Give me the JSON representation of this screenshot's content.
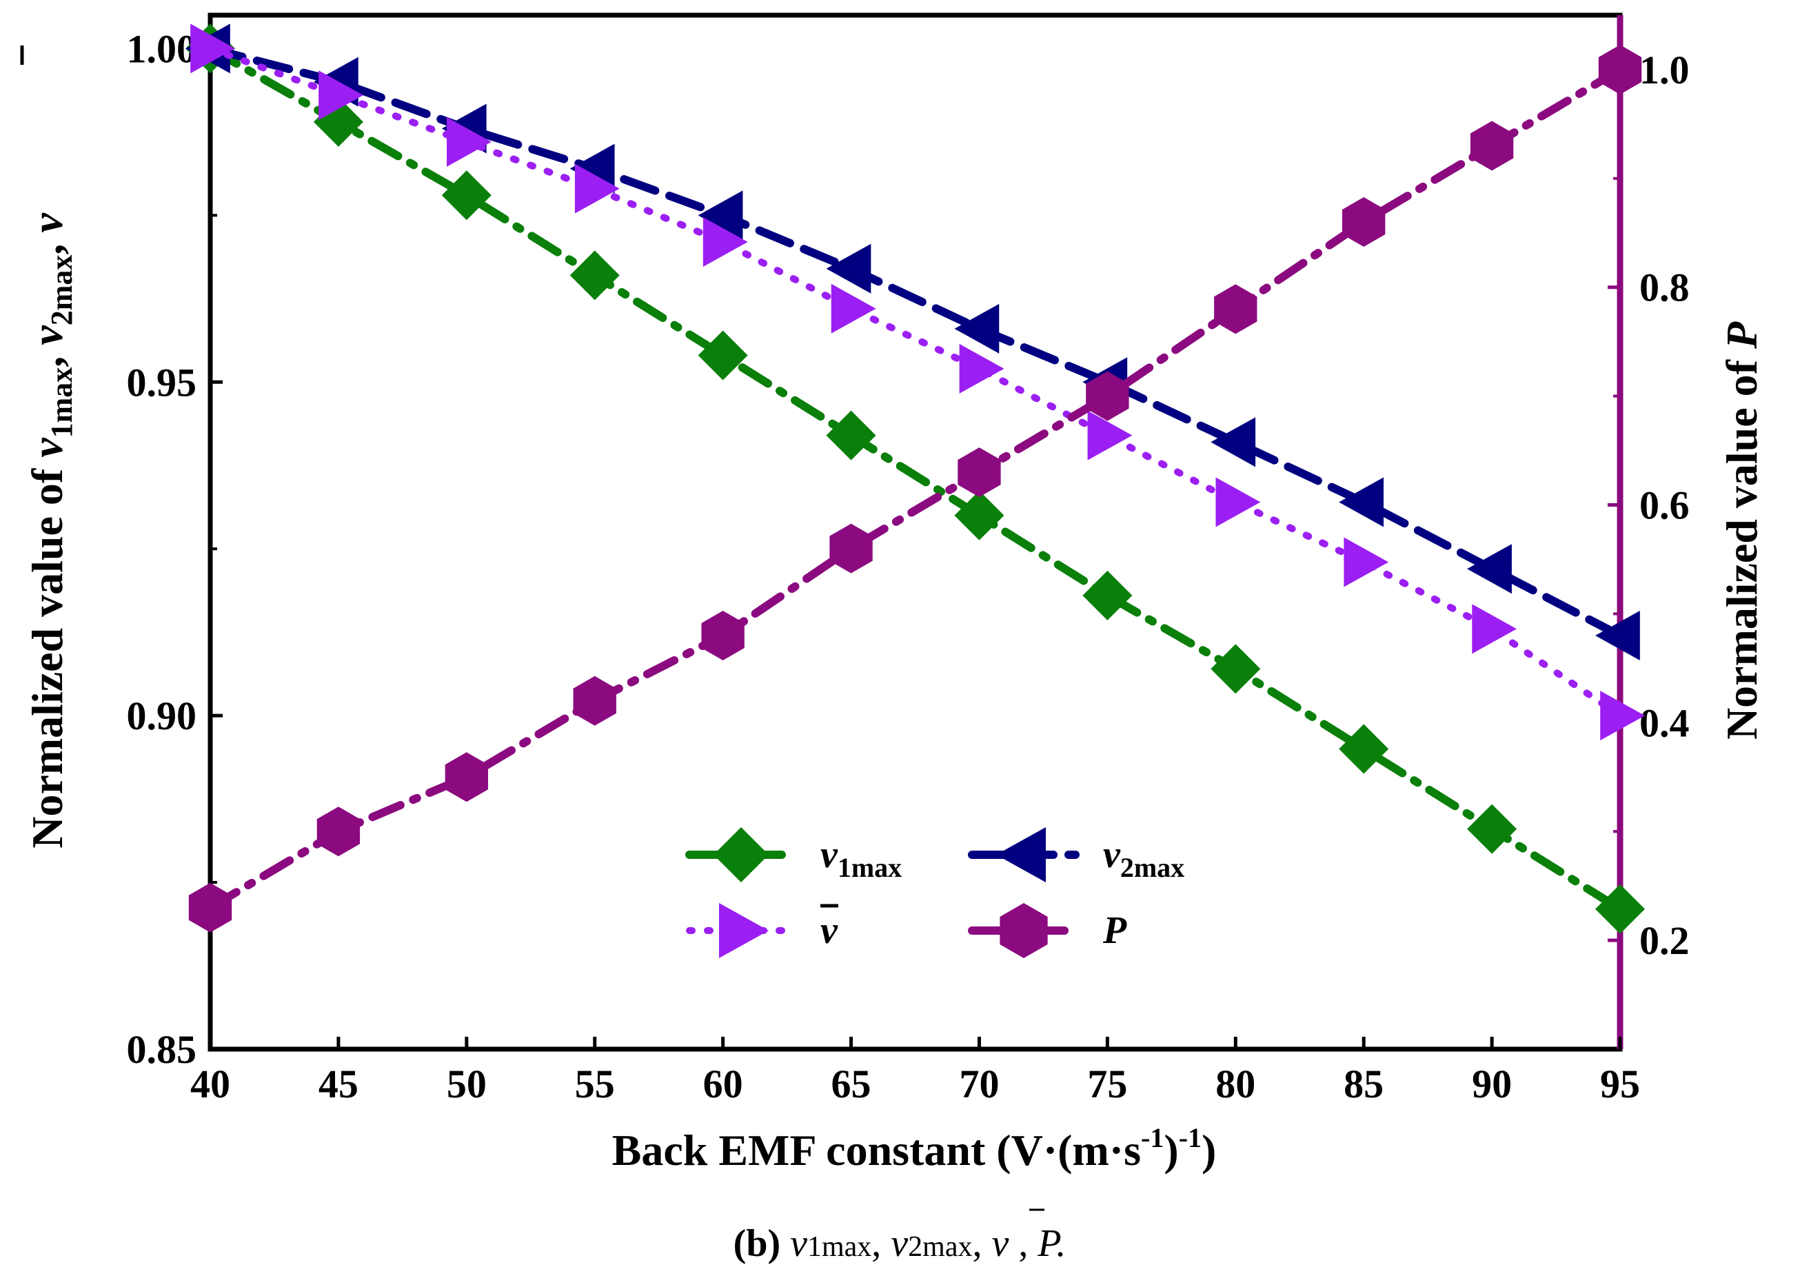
{
  "chart_data": {
    "type": "line",
    "xlabel": "Back EMF constant (V·(m·s⁻¹)⁻¹)",
    "ylabel": "Normalized value of v₁max, v₂max, v̄",
    "y2label": "Normalized value of P",
    "caption": {
      "prefix": "(b)",
      "text": " v1max, v2max, v̄ , P."
    },
    "x": [
      40,
      45,
      50,
      55,
      60,
      65,
      70,
      75,
      80,
      85,
      90,
      95
    ],
    "xlim": [
      40,
      95
    ],
    "ylim": [
      0.85,
      1.0
    ],
    "y2lim": [
      0.1,
      1.05
    ],
    "xticks": [
      "40",
      "45",
      "50",
      "55",
      "60",
      "65",
      "70",
      "75",
      "80",
      "85",
      "90",
      "95"
    ],
    "yticks": [
      "0.85",
      "0.90",
      "0.95",
      "1.00"
    ],
    "y2ticks": [
      "0.2",
      "0.4",
      "0.6",
      "0.8",
      "1.0"
    ],
    "legend_position": "lower-center",
    "series": [
      {
        "name": "v1max",
        "label_main": "v",
        "label_sub": "1max",
        "axis": "left",
        "color": "#0a7f0a",
        "marker": "diamond",
        "line": "dash-dot",
        "values": [
          1.0,
          0.989,
          0.978,
          0.966,
          0.954,
          0.942,
          0.93,
          0.918,
          0.907,
          0.895,
          0.883,
          0.871
        ]
      },
      {
        "name": "v2max",
        "label_main": "v",
        "label_sub": "2max",
        "axis": "left",
        "color": "#000080",
        "marker": "triangle-left",
        "line": "dash",
        "values": [
          1.0,
          0.995,
          0.988,
          0.982,
          0.975,
          0.967,
          0.958,
          0.95,
          0.941,
          0.932,
          0.922,
          0.912
        ]
      },
      {
        "name": "v̄",
        "label_main": "v",
        "label_sub": "",
        "axis": "left",
        "color": "#9b1ff2",
        "marker": "triangle-right",
        "line": "dot",
        "values": [
          1.0,
          0.993,
          0.986,
          0.979,
          0.971,
          0.961,
          0.952,
          0.942,
          0.932,
          0.923,
          0.913,
          0.9
        ]
      },
      {
        "name": "P",
        "label_main": "P",
        "label_sub": "",
        "axis": "right",
        "color": "#8b0a7f",
        "marker": "hexagon",
        "line": "dash-dot",
        "values": [
          0.23,
          0.3,
          0.35,
          0.42,
          0.48,
          0.56,
          0.63,
          0.7,
          0.78,
          0.86,
          0.93,
          1.0
        ]
      }
    ]
  }
}
